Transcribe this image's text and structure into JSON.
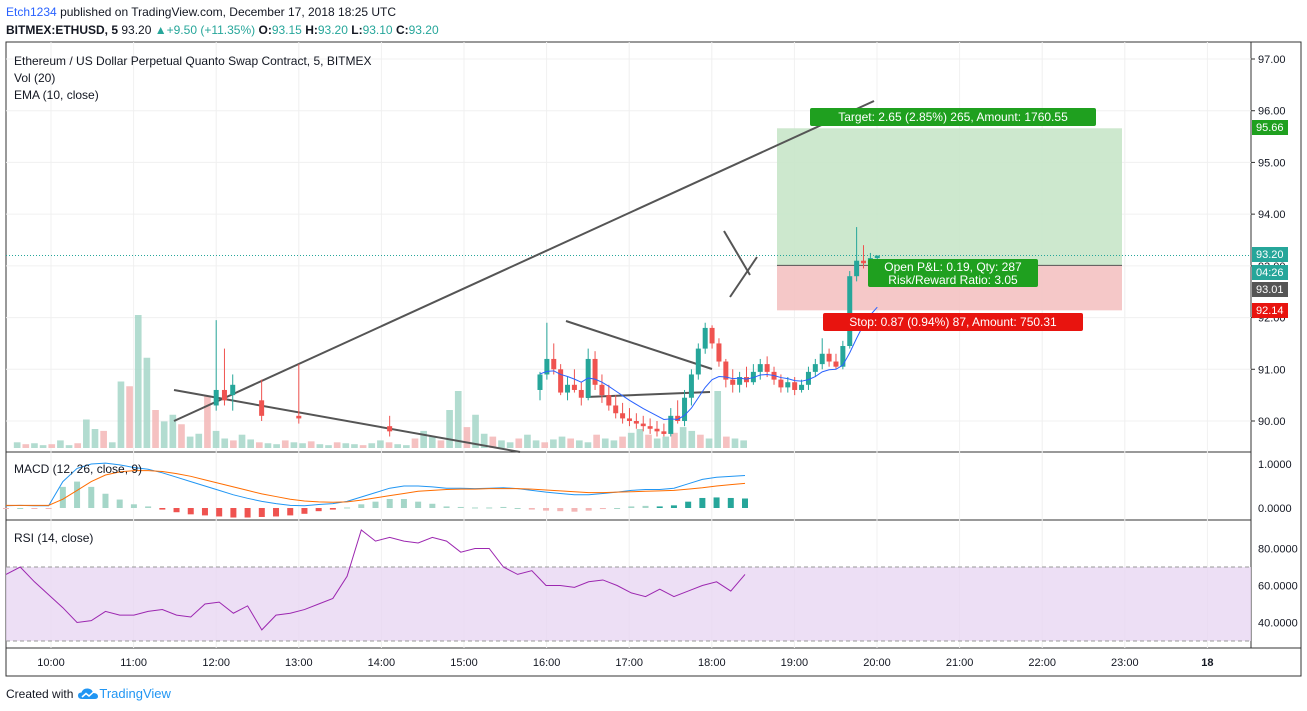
{
  "header": {
    "user": "Etch1234",
    "published": "published on TradingView.com, December 17, 2018 18:25 UTC",
    "symbol": "BITMEX:ETHUSD, 5",
    "last": "93.20",
    "change": "+9.50 (+11.35%)",
    "o_label": "O:",
    "o": "93.15",
    "h_label": "H:",
    "h": "93.20",
    "l_label": "L:",
    "l": "93.10",
    "c_label": "C:",
    "c": "93.20"
  },
  "legend": {
    "title": "Ethereum / US Dollar Perpetual Quanto Swap Contract, 5, BITMEX",
    "vol": "Vol (20)",
    "ema": "EMA (10, close)",
    "macd": "MACD (12, 26, close, 9)",
    "rsi": "RSI (14, close)"
  },
  "position_tool": {
    "target": "Target: 2.65 (2.85%) 265, Amount: 1760.55",
    "open_pnl": "Open P&L: 0.19, Qty: 287",
    "rr": "Risk/Reward Ratio: 3.05",
    "stop": "Stop: 0.87 (0.94%) 87, Amount: 750.31"
  },
  "price_tags": {
    "target": "95.66",
    "last": "93.20",
    "countdown": "04:26",
    "entry": "93.01",
    "stop": "92.14"
  },
  "footer": {
    "created": "Created with",
    "brand": "TradingView"
  },
  "colors": {
    "up": "#26a69a",
    "down": "#ef5350",
    "ema": "#2962ff",
    "macd": "#2196f3",
    "signal": "#ff6d00",
    "rsi": "#9c27b0",
    "target_zone": "#c8e6c9",
    "stop_zone": "#f4c2c2"
  },
  "chart_data": [
    {
      "type": "candlestick",
      "name": "price",
      "y_ticks": [
        "97.00",
        "96.00",
        "95.00",
        "94.00",
        "93.00",
        "92.00",
        "91.00",
        "90.00"
      ],
      "ylim": [
        89.5,
        97.2
      ],
      "x_ticks": [
        "10:00",
        "11:00",
        "12:00",
        "13:00",
        "14:00",
        "15:00",
        "16:00",
        "17:00",
        "18:00",
        "19:00",
        "20:00",
        "21:00",
        "22:00",
        "23:00",
        "18"
      ],
      "candles": [
        {
          "o": 90.95,
          "h": 91.15,
          "l": 90.8,
          "c": 91.0
        },
        {
          "o": 91.0,
          "h": 91.1,
          "l": 90.75,
          "c": 90.85
        },
        {
          "o": 90.85,
          "h": 91.0,
          "l": 90.55,
          "c": 90.6
        },
        {
          "o": 90.6,
          "h": 90.95,
          "l": 90.4,
          "c": 90.9
        },
        {
          "o": 90.9,
          "h": 91.9,
          "l": 90.8,
          "c": 91.2
        },
        {
          "o": 91.2,
          "h": 91.5,
          "l": 90.9,
          "c": 91.0
        },
        {
          "o": 91.0,
          "h": 91.1,
          "l": 90.5,
          "c": 90.55
        },
        {
          "o": 90.55,
          "h": 90.85,
          "l": 90.4,
          "c": 90.7
        },
        {
          "o": 90.7,
          "h": 91.0,
          "l": 90.55,
          "c": 90.6
        },
        {
          "o": 90.6,
          "h": 90.75,
          "l": 90.3,
          "c": 90.45
        },
        {
          "o": 90.45,
          "h": 91.4,
          "l": 90.4,
          "c": 91.2
        },
        {
          "o": 91.2,
          "h": 91.35,
          "l": 90.6,
          "c": 90.7
        },
        {
          "o": 90.7,
          "h": 90.9,
          "l": 90.35,
          "c": 90.5
        },
        {
          "o": 90.5,
          "h": 90.7,
          "l": 90.2,
          "c": 90.3
        },
        {
          "o": 90.3,
          "h": 90.5,
          "l": 90.05,
          "c": 90.15
        },
        {
          "o": 90.15,
          "h": 90.35,
          "l": 89.95,
          "c": 90.05
        },
        {
          "o": 90.05,
          "h": 90.25,
          "l": 89.9,
          "c": 90.0
        },
        {
          "o": 90.0,
          "h": 90.15,
          "l": 89.85,
          "c": 89.95
        },
        {
          "o": 89.95,
          "h": 90.1,
          "l": 89.8,
          "c": 89.9
        },
        {
          "o": 89.9,
          "h": 90.05,
          "l": 89.75,
          "c": 89.85
        },
        {
          "o": 89.85,
          "h": 90.0,
          "l": 89.7,
          "c": 89.8
        },
        {
          "o": 89.8,
          "h": 89.95,
          "l": 89.7,
          "c": 89.75
        },
        {
          "o": 89.75,
          "h": 90.25,
          "l": 89.7,
          "c": 90.1
        },
        {
          "o": 90.1,
          "h": 90.4,
          "l": 89.95,
          "c": 90.0
        },
        {
          "o": 90.0,
          "h": 90.6,
          "l": 89.9,
          "c": 90.45
        },
        {
          "o": 90.45,
          "h": 91.0,
          "l": 90.3,
          "c": 90.9
        },
        {
          "o": 90.9,
          "h": 91.5,
          "l": 90.8,
          "c": 91.4
        },
        {
          "o": 91.4,
          "h": 91.9,
          "l": 91.3,
          "c": 91.8
        },
        {
          "o": 91.8,
          "h": 91.85,
          "l": 91.4,
          "c": 91.5
        },
        {
          "o": 91.5,
          "h": 91.6,
          "l": 91.05,
          "c": 91.15
        },
        {
          "o": 91.15,
          "h": 91.2,
          "l": 90.65,
          "c": 90.8
        },
        {
          "o": 90.8,
          "h": 91.0,
          "l": 90.55,
          "c": 90.7
        },
        {
          "o": 90.7,
          "h": 90.95,
          "l": 90.55,
          "c": 90.85
        },
        {
          "o": 90.85,
          "h": 91.05,
          "l": 90.65,
          "c": 90.75
        },
        {
          "o": 90.75,
          "h": 91.1,
          "l": 90.7,
          "c": 90.95
        },
        {
          "o": 90.95,
          "h": 91.2,
          "l": 90.8,
          "c": 91.1
        },
        {
          "o": 91.1,
          "h": 91.25,
          "l": 90.85,
          "c": 90.95
        },
        {
          "o": 90.95,
          "h": 91.05,
          "l": 90.7,
          "c": 90.8
        },
        {
          "o": 90.8,
          "h": 90.9,
          "l": 90.55,
          "c": 90.65
        },
        {
          "o": 90.65,
          "h": 90.85,
          "l": 90.55,
          "c": 90.75
        },
        {
          "o": 90.75,
          "h": 90.85,
          "l": 90.5,
          "c": 90.6
        },
        {
          "o": 90.6,
          "h": 90.8,
          "l": 90.55,
          "c": 90.7
        },
        {
          "o": 90.7,
          "h": 91.05,
          "l": 90.6,
          "c": 90.95
        },
        {
          "o": 90.95,
          "h": 91.2,
          "l": 90.85,
          "c": 91.1
        },
        {
          "o": 91.1,
          "h": 91.6,
          "l": 91.0,
          "c": 91.3
        },
        {
          "o": 91.3,
          "h": 91.4,
          "l": 91.05,
          "c": 91.15
        },
        {
          "o": 91.15,
          "h": 91.3,
          "l": 91.0,
          "c": 91.05
        },
        {
          "o": 91.05,
          "h": 91.55,
          "l": 91.0,
          "c": 91.45
        },
        {
          "o": 91.45,
          "h": 92.9,
          "l": 91.4,
          "c": 92.8
        },
        {
          "o": 92.8,
          "h": 93.75,
          "l": 92.7,
          "c": 93.1
        },
        {
          "o": 93.1,
          "h": 93.4,
          "l": 92.95,
          "c": 93.05
        },
        {
          "o": 93.05,
          "h": 93.25,
          "l": 92.9,
          "c": 93.15
        },
        {
          "o": 93.15,
          "h": 93.2,
          "l": 93.1,
          "c": 93.2
        }
      ],
      "ema": [
        91.0,
        90.98,
        90.91,
        90.91,
        90.96,
        90.97,
        90.9,
        90.86,
        90.81,
        90.75,
        90.83,
        90.81,
        90.75,
        90.67,
        90.58,
        90.49,
        90.4,
        90.32,
        90.24,
        90.17,
        90.1,
        90.03,
        90.04,
        90.03,
        90.11,
        90.25,
        90.45,
        90.65,
        90.8,
        90.86,
        90.85,
        90.82,
        90.83,
        90.81,
        90.84,
        90.89,
        90.9,
        90.88,
        90.84,
        90.82,
        90.78,
        90.77,
        90.8,
        90.86,
        90.95,
        90.99,
        91.0,
        91.08,
        91.32,
        91.6,
        91.86,
        92.05,
        92.2
      ],
      "volume_axis": "Vol (20)"
    },
    {
      "type": "line",
      "name": "MACD",
      "y_ticks": [
        "1.0000",
        "0.0000"
      ],
      "ylim": [
        -0.2,
        1.1
      ],
      "series": [
        {
          "name": "MACD",
          "values": [
            0.05,
            0.06,
            0.05,
            0.05,
            0.6,
            0.9,
            1.0,
            1.02,
            0.98,
            0.92,
            0.88,
            0.8,
            0.7,
            0.6,
            0.5,
            0.4,
            0.3,
            0.22,
            0.15,
            0.1,
            0.06,
            0.05,
            0.08,
            0.1,
            0.15,
            0.25,
            0.35,
            0.45,
            0.5,
            0.5,
            0.48,
            0.45,
            0.45,
            0.44,
            0.45,
            0.46,
            0.44,
            0.4,
            0.36,
            0.33,
            0.3,
            0.3,
            0.33,
            0.36,
            0.4,
            0.42,
            0.42,
            0.45,
            0.55,
            0.65,
            0.7,
            0.72,
            0.74
          ]
        },
        {
          "name": "Signal",
          "values": [
            0.06,
            0.06,
            0.06,
            0.06,
            0.2,
            0.4,
            0.6,
            0.75,
            0.82,
            0.85,
            0.85,
            0.83,
            0.78,
            0.72,
            0.64,
            0.56,
            0.48,
            0.4,
            0.32,
            0.26,
            0.2,
            0.16,
            0.14,
            0.13,
            0.14,
            0.18,
            0.23,
            0.28,
            0.33,
            0.38,
            0.4,
            0.42,
            0.43,
            0.43,
            0.44,
            0.44,
            0.44,
            0.43,
            0.41,
            0.39,
            0.37,
            0.35,
            0.35,
            0.36,
            0.37,
            0.38,
            0.39,
            0.4,
            0.43,
            0.46,
            0.5,
            0.53,
            0.56
          ]
        }
      ]
    },
    {
      "type": "line",
      "name": "RSI",
      "y_ticks": [
        "80.0000",
        "60.0000",
        "40.0000"
      ],
      "ylim": [
        22,
        95
      ],
      "band": [
        30,
        70
      ],
      "series": [
        {
          "name": "RSI",
          "values": [
            66,
            70,
            62,
            55,
            48,
            40,
            41,
            46,
            44,
            44,
            46,
            47,
            44,
            43,
            50,
            51,
            45,
            49,
            36,
            44,
            45,
            47,
            50,
            53,
            65,
            90,
            84,
            86,
            84,
            83,
            86,
            84,
            78,
            80,
            80,
            70,
            66,
            68,
            60,
            60,
            59,
            62,
            63,
            60,
            56,
            54,
            58,
            54,
            57,
            60,
            62,
            57,
            66
          ]
        }
      ]
    }
  ]
}
